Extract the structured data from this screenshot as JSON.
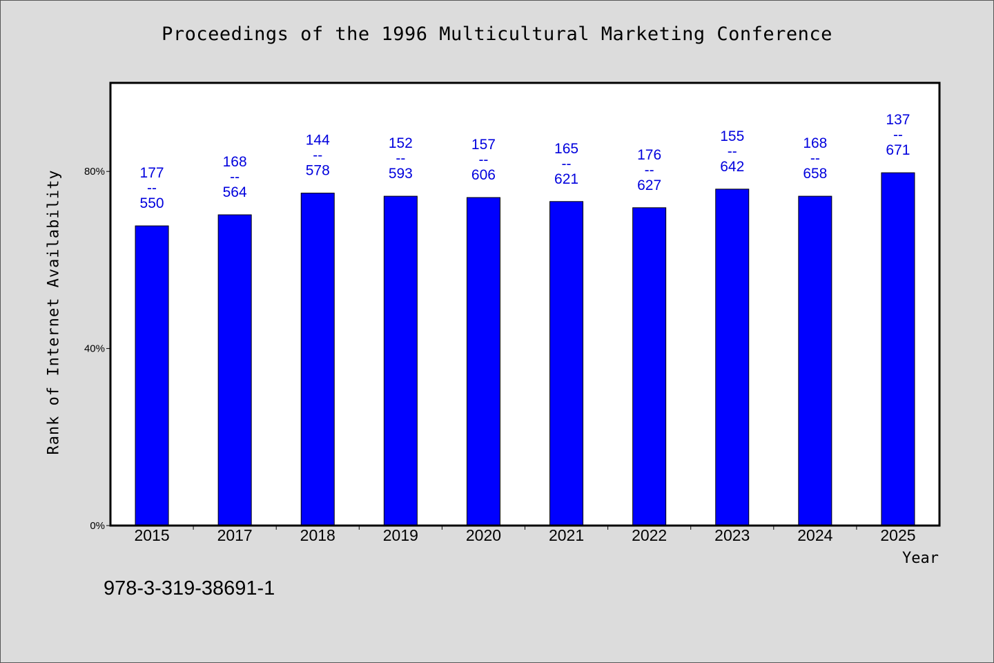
{
  "chart_data": {
    "type": "bar",
    "title": "Proceedings of the 1996 Multicultural Marketing Conference",
    "xlabel": "Year",
    "ylabel": "Rank of Internet Availability",
    "categories": [
      "2015",
      "2017",
      "2018",
      "2019",
      "2020",
      "2021",
      "2022",
      "2023",
      "2024",
      "2025"
    ],
    "values": [
      67.7,
      70.2,
      75.1,
      74.4,
      74.1,
      73.2,
      71.8,
      76.0,
      74.4,
      79.7
    ],
    "data_labels": [
      [
        "177",
        "--",
        "550"
      ],
      [
        "168",
        "--",
        "564"
      ],
      [
        "144",
        "--",
        "578"
      ],
      [
        "152",
        "--",
        "593"
      ],
      [
        "157",
        "--",
        "606"
      ],
      [
        "165",
        "--",
        "621"
      ],
      [
        "176",
        "--",
        "627"
      ],
      [
        "155",
        "--",
        "642"
      ],
      [
        "168",
        "--",
        "658"
      ],
      [
        "137",
        "--",
        "671"
      ]
    ],
    "ylim": [
      0,
      100
    ],
    "yticks": [
      0,
      40,
      80
    ],
    "ytick_labels": [
      "0%",
      "40%",
      "80%"
    ],
    "grid": false,
    "colors": {
      "bar": "#0000ff",
      "data_label": "#0000dd",
      "background": "#dcdcdc",
      "plot_background": "#ffffff"
    }
  },
  "footer": {
    "isbn": "978-3-319-38691-1"
  }
}
